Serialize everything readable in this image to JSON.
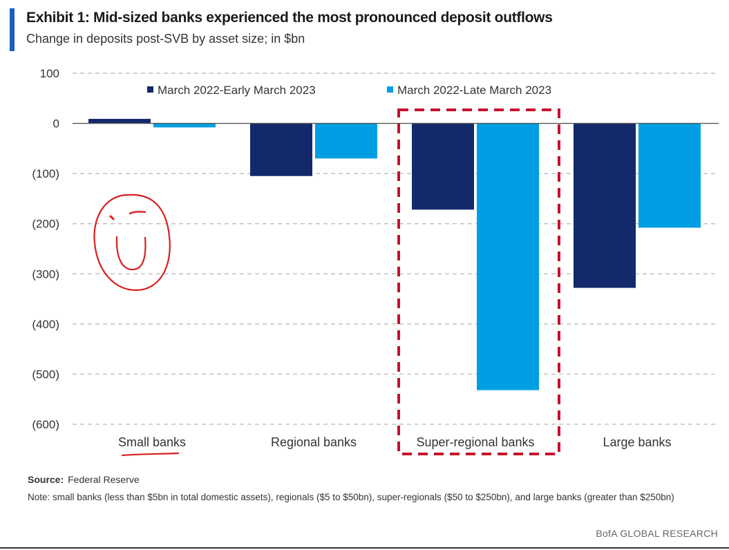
{
  "title": "Exhibit 1: Mid-sized banks experienced the most pronounced deposit outflows",
  "subtitle": "Change in deposits post-SVB by asset size; in $bn",
  "source_label": "Source:",
  "source_text": "Federal Reserve",
  "note": "Note: small banks (less than $5bn in total domestic assets), regionals ($5 to $50bn), super-regionals ($50 to $250bn), and large banks (greater than $250bn)",
  "brand": "BofA GLOBAL RESEARCH",
  "colors": {
    "series1": "#13296b",
    "series2": "#009fe3",
    "highlight_box": "#c8102e",
    "annotation": "#d81e1e",
    "accent": "#1a5ec4"
  },
  "chart_data": {
    "type": "bar",
    "categories": [
      "Small banks",
      "Regional banks",
      "Super-regional banks",
      "Large banks"
    ],
    "series": [
      {
        "name": "March 2022-Early March 2023",
        "values": [
          9,
          -105,
          -172,
          -328
        ]
      },
      {
        "name": "March 2022-Late March 2023",
        "values": [
          -8,
          -70,
          -532,
          -208
        ]
      }
    ],
    "ylim": [
      -600,
      100
    ],
    "yticks": [
      100,
      0,
      -100,
      -200,
      -300,
      -400,
      -500,
      -600
    ],
    "ytick_labels": [
      "100",
      "0",
      "(100)",
      "(200)",
      "(300)",
      "(400)",
      "(500)",
      "(600)"
    ],
    "grid": "dashed horizontal",
    "legend": "top",
    "highlighted_category": "Super-regional banks",
    "annotations": [
      "hand-drawn smiley face",
      "hand-drawn underline under Small banks"
    ]
  }
}
